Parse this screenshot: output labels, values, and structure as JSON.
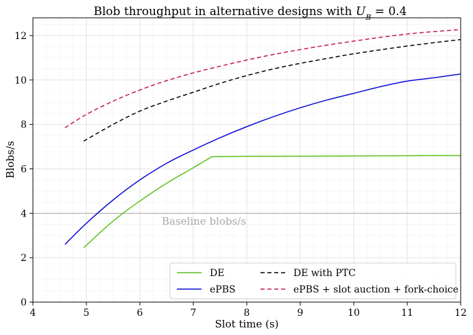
{
  "chart_data": {
    "type": "line",
    "title": "Blob throughput in alternative designs with U_B = 0.4",
    "title_prefix": "Blob throughput in alternative designs with ",
    "title_var": "U",
    "title_sub": "B",
    "title_suffix": " = 0.4",
    "xlabel": "Slot time (s)",
    "ylabel": "Blobs/s",
    "xlim": [
      4,
      12
    ],
    "ylim": [
      0,
      12.8
    ],
    "xticks": [
      4,
      5,
      6,
      7,
      8,
      9,
      10,
      11,
      12
    ],
    "yticks": [
      0,
      2,
      4,
      6,
      8,
      10,
      12
    ],
    "grid": true,
    "legend_position": "lower-right",
    "baseline": {
      "value": 4,
      "label": "Baseline blobs/s",
      "color": "#a8a8a8"
    },
    "series": [
      {
        "name": "DE",
        "color": "#5ac018",
        "style": "solid",
        "x": [
          4.95,
          5.5,
          6.0,
          6.5,
          7.0,
          7.35,
          8.0,
          9.0,
          10.0,
          11.0,
          12.0
        ],
        "y": [
          2.45,
          3.65,
          4.55,
          5.35,
          6.05,
          6.55,
          6.56,
          6.57,
          6.58,
          6.59,
          6.6
        ]
      },
      {
        "name": "ePBS",
        "color": "#0a0ad8",
        "style": "solid",
        "x": [
          4.6,
          5.0,
          5.5,
          6.0,
          6.5,
          7.0,
          7.5,
          8.0,
          8.5,
          9.0,
          9.5,
          10.0,
          10.5,
          11.0,
          11.5,
          12.0
        ],
        "y": [
          2.6,
          3.55,
          4.6,
          5.5,
          6.25,
          6.85,
          7.4,
          7.9,
          8.35,
          8.75,
          9.1,
          9.4,
          9.7,
          9.95,
          10.1,
          10.27
        ]
      },
      {
        "name": "DE with PTC",
        "color": "#000000",
        "style": "dashed",
        "x": [
          4.95,
          5.5,
          6.0,
          6.5,
          7.0,
          7.5,
          8.0,
          8.5,
          9.0,
          9.5,
          10.0,
          10.5,
          11.0,
          11.5,
          12.0
        ],
        "y": [
          7.25,
          8.0,
          8.6,
          9.05,
          9.45,
          9.85,
          10.2,
          10.5,
          10.75,
          10.97,
          11.18,
          11.36,
          11.53,
          11.68,
          11.82
        ]
      },
      {
        "name": "ePBS + slot auction + fork-choice",
        "color": "#c8145a",
        "style": "dashed",
        "x": [
          4.6,
          5.0,
          5.5,
          6.0,
          6.5,
          7.0,
          7.5,
          8.0,
          8.5,
          9.0,
          9.5,
          10.0,
          10.5,
          11.0,
          11.5,
          12.0
        ],
        "y": [
          7.85,
          8.45,
          9.05,
          9.55,
          9.97,
          10.32,
          10.62,
          10.9,
          11.15,
          11.37,
          11.57,
          11.75,
          11.92,
          12.07,
          12.18,
          12.27
        ]
      }
    ]
  }
}
